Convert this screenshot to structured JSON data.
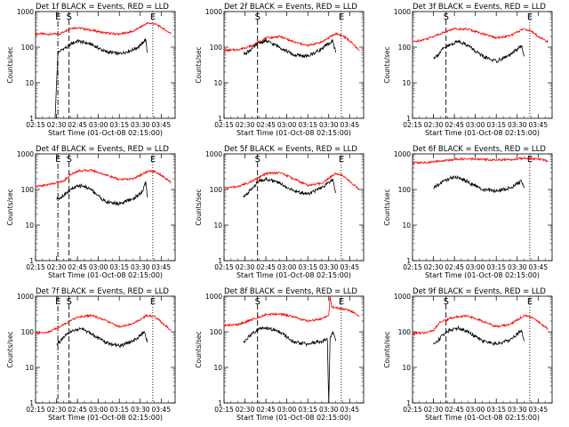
{
  "figure": {
    "ylabel": "Counts/sec",
    "xlabel": "Start Time (01-Oct-08 02:15:00)",
    "ytick_labels": [
      "1",
      "10",
      "100",
      "1000"
    ],
    "xtick_labels": [
      "02:15",
      "02:30",
      "02:45",
      "03:00",
      "03:15",
      "03:30",
      "03:45"
    ],
    "colors": {
      "events": "#000000",
      "lld": "#ff0000"
    }
  },
  "chart_data": [
    {
      "type": "line",
      "title": "Det 1f BLACK = Events, RED = LLD",
      "marker_labels": [
        "E",
        "S",
        "E"
      ],
      "xlim": [
        "02:15",
        "03:55"
      ],
      "ylim": [
        1,
        1000
      ],
      "yscale": "log",
      "series": [
        {
          "color": "#ff0000",
          "x": [
            "02:15",
            "02:25",
            "02:32",
            "02:36",
            "02:40",
            "02:45",
            "02:55",
            "03:05",
            "03:15",
            "03:25",
            "03:35",
            "03:40",
            "03:45",
            "03:52"
          ],
          "values": [
            240,
            230,
            235,
            280,
            340,
            350,
            300,
            250,
            230,
            280,
            470,
            460,
            360,
            240
          ]
        },
        {
          "color": "#000000",
          "x": [
            "02:29",
            "02:31",
            "02:33",
            "02:36",
            "02:38",
            "02:40",
            "02:45",
            "02:55",
            "03:05",
            "03:15",
            "03:25",
            "03:30",
            "03:32",
            "03:34",
            "03:35"
          ],
          "values": [
            1,
            70,
            80,
            95,
            100,
            120,
            150,
            120,
            75,
            65,
            85,
            110,
            140,
            160,
            70
          ]
        }
      ]
    },
    {
      "type": "line",
      "title": "Det 2f BLACK = Events, RED = LLD",
      "marker_labels": [
        "S",
        "E"
      ],
      "xlim": [
        "02:15",
        "03:55"
      ],
      "ylim": [
        1,
        1000
      ],
      "yscale": "log",
      "series": [
        {
          "color": "#ff0000",
          "x": [
            "02:15",
            "02:25",
            "02:35",
            "02:45",
            "02:55",
            "03:05",
            "03:15",
            "03:25",
            "03:35",
            "03:40",
            "03:45",
            "03:52"
          ],
          "values": [
            80,
            85,
            110,
            180,
            200,
            140,
            110,
            140,
            240,
            210,
            150,
            80
          ]
        },
        {
          "color": "#000000",
          "x": [
            "02:29",
            "02:31",
            "02:35",
            "02:40",
            "02:45",
            "02:55",
            "03:05",
            "03:15",
            "03:25",
            "03:33",
            "03:35"
          ],
          "values": [
            65,
            70,
            90,
            130,
            150,
            100,
            60,
            55,
            90,
            150,
            70
          ]
        }
      ]
    },
    {
      "type": "line",
      "title": "Det 3f BLACK = Events, RED = LLD",
      "marker_labels": [
        "S",
        "E"
      ],
      "xlim": [
        "02:15",
        "03:55"
      ],
      "ylim": [
        1,
        1000
      ],
      "yscale": "log",
      "series": [
        {
          "color": "#ff0000",
          "x": [
            "02:15",
            "02:25",
            "02:35",
            "02:45",
            "02:55",
            "03:05",
            "03:15",
            "03:25",
            "03:35",
            "03:40",
            "03:45",
            "03:52"
          ],
          "values": [
            140,
            170,
            240,
            330,
            320,
            240,
            180,
            210,
            330,
            280,
            200,
            140
          ]
        },
        {
          "color": "#000000",
          "x": [
            "02:30",
            "02:33",
            "02:37",
            "02:42",
            "02:48",
            "02:55",
            "03:05",
            "03:15",
            "03:25",
            "03:33",
            "03:35"
          ],
          "values": [
            50,
            60,
            90,
            115,
            150,
            110,
            55,
            40,
            60,
            110,
            55
          ]
        }
      ]
    },
    {
      "type": "line",
      "title": "Det 4f BLACK = Events, RED = LLD",
      "marker_labels": [
        "E",
        "S",
        "E"
      ],
      "xlim": [
        "02:15",
        "03:55"
      ],
      "ylim": [
        1,
        1000
      ],
      "yscale": "log",
      "series": [
        {
          "color": "#ff0000",
          "x": [
            "02:15",
            "02:25",
            "02:35",
            "02:40",
            "02:45",
            "02:55",
            "03:05",
            "03:15",
            "03:25",
            "03:35",
            "03:40",
            "03:45",
            "03:52"
          ],
          "values": [
            120,
            140,
            170,
            260,
            330,
            350,
            260,
            190,
            200,
            320,
            330,
            250,
            160
          ]
        },
        {
          "color": "#000000",
          "x": [
            "02:30",
            "02:33",
            "02:37",
            "02:42",
            "02:48",
            "02:55",
            "03:05",
            "03:15",
            "03:25",
            "03:32",
            "03:34",
            "03:35"
          ],
          "values": [
            55,
            60,
            80,
            110,
            130,
            100,
            45,
            40,
            55,
            90,
            170,
            60
          ]
        }
      ]
    },
    {
      "type": "line",
      "title": "Det 5f BLACK = Events, RED = LLD",
      "marker_labels": [
        "S",
        "E"
      ],
      "xlim": [
        "02:15",
        "03:55"
      ],
      "ylim": [
        1,
        1000
      ],
      "yscale": "log",
      "series": [
        {
          "color": "#ff0000",
          "x": [
            "02:15",
            "02:25",
            "02:35",
            "02:45",
            "02:55",
            "03:05",
            "03:15",
            "03:25",
            "03:35",
            "03:40",
            "03:45",
            "03:52"
          ],
          "values": [
            110,
            120,
            170,
            280,
            300,
            200,
            130,
            150,
            290,
            250,
            170,
            100
          ]
        },
        {
          "color": "#000000",
          "x": [
            "02:29",
            "02:31",
            "02:35",
            "02:40",
            "02:45",
            "02:55",
            "03:05",
            "03:15",
            "03:25",
            "03:33",
            "03:35"
          ],
          "values": [
            60,
            70,
            110,
            170,
            200,
            150,
            90,
            75,
            110,
            190,
            80
          ]
        }
      ]
    },
    {
      "type": "line",
      "title": "Det 6f BLACK = Events, RED = LLD",
      "marker_labels": [
        "E"
      ],
      "xlim": [
        "02:15",
        "03:55"
      ],
      "ylim": [
        1,
        1000
      ],
      "yscale": "log",
      "series": [
        {
          "color": "#ff0000",
          "x": [
            "02:15",
            "02:25",
            "02:35",
            "02:45",
            "02:55",
            "03:05",
            "03:15",
            "03:25",
            "03:35",
            "03:45",
            "03:52"
          ],
          "values": [
            560,
            570,
            620,
            700,
            720,
            700,
            680,
            690,
            760,
            720,
            640
          ]
        },
        {
          "color": "#000000",
          "x": [
            "02:30",
            "02:33",
            "02:37",
            "02:42",
            "02:48",
            "02:55",
            "03:05",
            "03:15",
            "03:25",
            "03:33",
            "03:35"
          ],
          "values": [
            110,
            130,
            170,
            210,
            220,
            160,
            100,
            90,
            110,
            170,
            110
          ]
        }
      ]
    },
    {
      "type": "line",
      "title": "Det 7f BLACK = Events, RED = LLD",
      "marker_labels": [
        "E",
        "S",
        "E"
      ],
      "xlim": [
        "02:15",
        "03:55"
      ],
      "ylim": [
        1,
        1000
      ],
      "yscale": "log",
      "series": [
        {
          "color": "#ff0000",
          "x": [
            "02:15",
            "02:25",
            "02:35",
            "02:45",
            "02:55",
            "03:05",
            "03:15",
            "03:25",
            "03:35",
            "03:40",
            "03:45",
            "03:52"
          ],
          "values": [
            90,
            100,
            160,
            260,
            290,
            210,
            140,
            170,
            290,
            270,
            190,
            110
          ]
        },
        {
          "color": "#000000",
          "x": [
            "02:30",
            "02:33",
            "02:37",
            "02:42",
            "02:48",
            "02:55",
            "03:05",
            "03:15",
            "03:25",
            "03:33",
            "03:35"
          ],
          "values": [
            45,
            55,
            80,
            110,
            120,
            90,
            50,
            40,
            55,
            100,
            50
          ]
        }
      ]
    },
    {
      "type": "line",
      "title": "Det 8f BLACK = Events, RED = LLD",
      "marker_labels": [
        "S",
        "E"
      ],
      "xlim": [
        "02:15",
        "03:55"
      ],
      "ylim": [
        1,
        1000
      ],
      "yscale": "log",
      "series": [
        {
          "color": "#ff0000",
          "x": [
            "02:15",
            "02:25",
            "02:35",
            "02:45",
            "02:55",
            "03:05",
            "03:15",
            "03:25",
            "03:30",
            "03:31",
            "03:32",
            "03:35",
            "03:45",
            "03:52"
          ],
          "values": [
            150,
            160,
            220,
            310,
            320,
            260,
            200,
            230,
            300,
            1000,
            500,
            480,
            400,
            280
          ]
        },
        {
          "color": "#000000",
          "x": [
            "02:29",
            "02:31",
            "02:35",
            "02:40",
            "02:45",
            "02:55",
            "03:05",
            "03:15",
            "03:25",
            "03:29",
            "03:30",
            "03:31",
            "03:33",
            "03:35"
          ],
          "values": [
            50,
            60,
            90,
            120,
            130,
            100,
            50,
            45,
            55,
            60,
            1,
            70,
            100,
            55
          ]
        }
      ]
    },
    {
      "type": "line",
      "title": "Det 9f BLACK = Events, RED = LLD",
      "marker_labels": [
        "S",
        "E"
      ],
      "xlim": [
        "02:15",
        "03:55"
      ],
      "ylim": [
        1,
        1000
      ],
      "yscale": "log",
      "series": [
        {
          "color": "#ff0000",
          "x": [
            "02:15",
            "02:25",
            "02:30",
            "02:35",
            "02:45",
            "02:55",
            "03:05",
            "03:15",
            "03:25",
            "03:35",
            "03:40",
            "03:45",
            "03:52"
          ],
          "values": [
            90,
            95,
            110,
            190,
            260,
            280,
            200,
            140,
            160,
            290,
            260,
            190,
            120
          ]
        },
        {
          "color": "#000000",
          "x": [
            "02:30",
            "02:33",
            "02:37",
            "02:42",
            "02:48",
            "02:55",
            "03:05",
            "03:15",
            "03:25",
            "03:33",
            "03:35"
          ],
          "values": [
            45,
            55,
            85,
            115,
            130,
            100,
            55,
            45,
            60,
            110,
            55
          ]
        }
      ]
    }
  ]
}
